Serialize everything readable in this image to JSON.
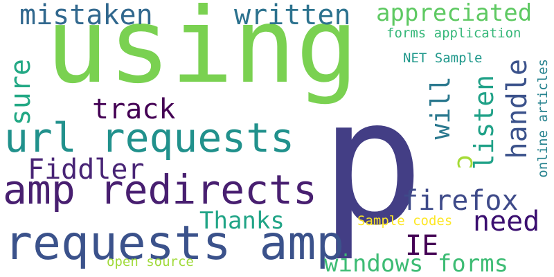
{
  "words": [
    {
      "id": "using",
      "text": "using",
      "color": "#7ad151",
      "orientation": "horizontal"
    },
    {
      "id": "p",
      "text": "p",
      "color": "#433e85",
      "orientation": "horizontal"
    },
    {
      "id": "mistaken",
      "text": "mistaken",
      "color": "#31688e",
      "orientation": "horizontal"
    },
    {
      "id": "written",
      "text": "written",
      "color": "#2c728e",
      "orientation": "horizontal"
    },
    {
      "id": "appreciated",
      "text": "appreciated",
      "color": "#5ec962",
      "orientation": "horizontal"
    },
    {
      "id": "forms_application",
      "text": "forms application",
      "color": "#35b779",
      "orientation": "horizontal"
    },
    {
      "id": "net_sample",
      "text": "NET Sample",
      "color": "#1f988b",
      "orientation": "horizontal"
    },
    {
      "id": "sure",
      "text": "sure",
      "color": "#22a884",
      "orientation": "vertical"
    },
    {
      "id": "track",
      "text": "track",
      "color": "#440154",
      "orientation": "horizontal"
    },
    {
      "id": "url_requests",
      "text": "url requests",
      "color": "#21918c",
      "orientation": "horizontal"
    },
    {
      "id": "fiddler",
      "text": "Fiddler",
      "color": "#482475",
      "orientation": "horizontal"
    },
    {
      "id": "amp_redirects",
      "text": "amp redirects",
      "color": "#481f70",
      "orientation": "horizontal"
    },
    {
      "id": "requests_amp",
      "text": "requests amp",
      "color": "#3b528b",
      "orientation": "horizontal"
    },
    {
      "id": "thanks",
      "text": "Thanks",
      "color": "#20a486",
      "orientation": "horizontal"
    },
    {
      "id": "open_source",
      "text": "open source",
      "color": "#a0da39",
      "orientation": "horizontal"
    },
    {
      "id": "windows_forms",
      "text": "windows forms",
      "color": "#3dbc74",
      "orientation": "horizontal"
    },
    {
      "id": "ie",
      "text": "IE",
      "color": "#440154",
      "orientation": "horizontal"
    },
    {
      "id": "firefox",
      "text": "firefox",
      "color": "#3e4a89",
      "orientation": "horizontal"
    },
    {
      "id": "need",
      "text": "need",
      "color": "#3b0f70",
      "orientation": "horizontal"
    },
    {
      "id": "sample_codes",
      "text": "Sample codes",
      "color": "#fde725",
      "orientation": "horizontal"
    },
    {
      "id": "c",
      "text": "c",
      "color": "#a5db36",
      "orientation": "vertical"
    },
    {
      "id": "will",
      "text": "will",
      "color": "#2a788e",
      "orientation": "vertical"
    },
    {
      "id": "listen",
      "text": "listen",
      "color": "#1fa187",
      "orientation": "vertical"
    },
    {
      "id": "handle",
      "text": "handle",
      "color": "#3b528b",
      "orientation": "vertical"
    },
    {
      "id": "online_articles",
      "text": "online articles",
      "color": "#26828e",
      "orientation": "vertical"
    }
  ]
}
